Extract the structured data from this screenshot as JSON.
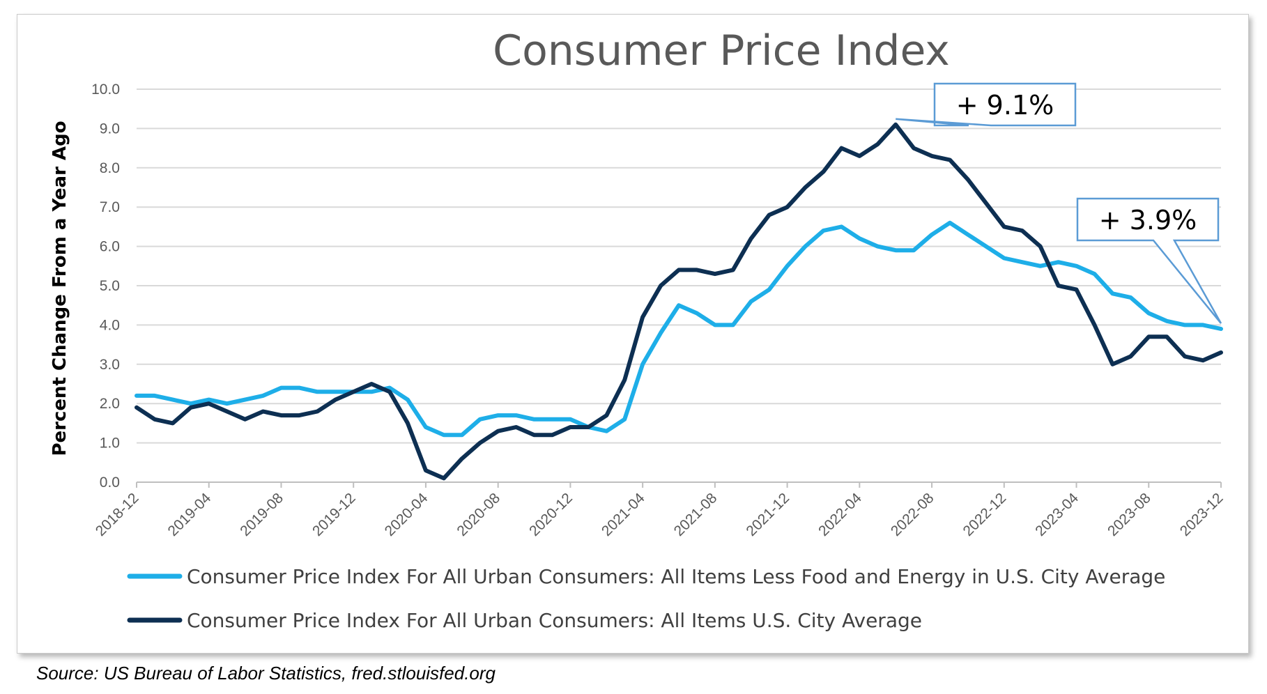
{
  "chart_data": {
    "type": "line",
    "title": "Consumer Price Index",
    "xlabel": "",
    "ylabel": "Percent Change From a Year Ago",
    "ylim": [
      0,
      10
    ],
    "yticks": [
      "0.0",
      "1.0",
      "2.0",
      "3.0",
      "4.0",
      "5.0",
      "6.0",
      "7.0",
      "8.0",
      "9.0",
      "10.0"
    ],
    "x_tick_labels": [
      "2018-12",
      "2019-04",
      "2019-08",
      "2019-12",
      "2020-04",
      "2020-08",
      "2020-12",
      "2021-04",
      "2021-08",
      "2021-12",
      "2022-04",
      "2022-08",
      "2022-12",
      "2023-04",
      "2023-08",
      "2023-12"
    ],
    "x": [
      "2018-12",
      "2019-01",
      "2019-02",
      "2019-03",
      "2019-04",
      "2019-05",
      "2019-06",
      "2019-07",
      "2019-08",
      "2019-09",
      "2019-10",
      "2019-11",
      "2019-12",
      "2020-01",
      "2020-02",
      "2020-03",
      "2020-04",
      "2020-05",
      "2020-06",
      "2020-07",
      "2020-08",
      "2020-09",
      "2020-10",
      "2020-11",
      "2020-12",
      "2021-01",
      "2021-02",
      "2021-03",
      "2021-04",
      "2021-05",
      "2021-06",
      "2021-07",
      "2021-08",
      "2021-09",
      "2021-10",
      "2021-11",
      "2021-12",
      "2022-01",
      "2022-02",
      "2022-03",
      "2022-04",
      "2022-05",
      "2022-06",
      "2022-07",
      "2022-08",
      "2022-09",
      "2022-10",
      "2022-11",
      "2022-12",
      "2023-01",
      "2023-02",
      "2023-03",
      "2023-04",
      "2023-05",
      "2023-06",
      "2023-07",
      "2023-08",
      "2023-09",
      "2023-10",
      "2023-11",
      "2023-12"
    ],
    "series": [
      {
        "name": "Consumer Price Index For All Urban Consumers: All Items Less Food and Energy in U.S. City Average",
        "color": "#1eaee8",
        "values": [
          2.2,
          2.2,
          2.1,
          2.0,
          2.1,
          2.0,
          2.1,
          2.2,
          2.4,
          2.4,
          2.3,
          2.3,
          2.3,
          2.3,
          2.4,
          2.1,
          1.4,
          1.2,
          1.2,
          1.6,
          1.7,
          1.7,
          1.6,
          1.6,
          1.6,
          1.4,
          1.3,
          1.6,
          3.0,
          3.8,
          4.5,
          4.3,
          4.0,
          4.0,
          4.6,
          4.9,
          5.5,
          6.0,
          6.4,
          6.5,
          6.2,
          6.0,
          5.9,
          5.9,
          6.3,
          6.6,
          6.3,
          6.0,
          5.7,
          5.6,
          5.5,
          5.6,
          5.5,
          5.3,
          4.8,
          4.7,
          4.3,
          4.1,
          4.0,
          4.0,
          3.9
        ]
      },
      {
        "name": "Consumer Price Index For All Urban Consumers: All Items U.S. City Average",
        "color": "#0d2f52",
        "values": [
          1.9,
          1.6,
          1.5,
          1.9,
          2.0,
          1.8,
          1.6,
          1.8,
          1.7,
          1.7,
          1.8,
          2.1,
          2.3,
          2.5,
          2.3,
          1.5,
          0.3,
          0.1,
          0.6,
          1.0,
          1.3,
          1.4,
          1.2,
          1.2,
          1.4,
          1.4,
          1.7,
          2.6,
          4.2,
          5.0,
          5.4,
          5.4,
          5.3,
          5.4,
          6.2,
          6.8,
          7.0,
          7.5,
          7.9,
          8.5,
          8.3,
          8.6,
          9.1,
          8.5,
          8.3,
          8.2,
          7.7,
          7.1,
          6.5,
          6.4,
          6.0,
          5.0,
          4.9,
          4.0,
          3.0,
          3.2,
          3.7,
          3.7,
          3.2,
          3.1,
          3.3
        ]
      }
    ],
    "annotations": [
      {
        "text": "+ 9.1%",
        "series": 1,
        "point": "2022-06"
      },
      {
        "text": "+ 3.9%",
        "series": 0,
        "point": "2023-12"
      }
    ],
    "legend_position": "bottom",
    "grid": true
  },
  "source_note": "Source: US Bureau of Labor Statistics, fred.stlouisfed.org"
}
